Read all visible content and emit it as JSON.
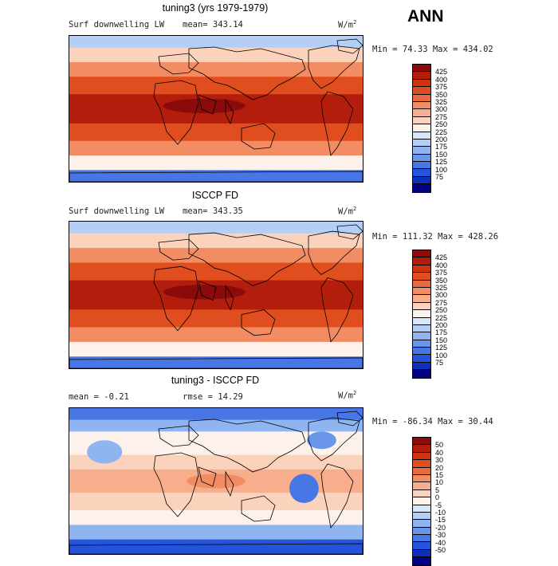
{
  "season": "ANN",
  "panels": [
    {
      "title": "tuning3 (yrs 1979-1979)",
      "variable": "Surf downwelling LW",
      "stat1": "mean= 343.14",
      "stat2": "",
      "units": "W/m",
      "units_exp": "2",
      "minmax": "Min =  74.33 Max = 434.02",
      "kind": "abs",
      "levels": [
        "425",
        "400",
        "375",
        "350",
        "325",
        "300",
        "275",
        "250",
        "225",
        "200",
        "175",
        "150",
        "125",
        "100",
        "75"
      ],
      "colors": [
        "#8b0a0a",
        "#b31e0c",
        "#cf340f",
        "#e04d1e",
        "#ea6a40",
        "#f28c63",
        "#f8ae8c",
        "#fbd3bd",
        "#fdf1ec",
        "#d8e6f9",
        "#b4cff5",
        "#8fb4f0",
        "#6a96ea",
        "#4876e4",
        "#2554dc",
        "#0d2fb9",
        "#000080"
      ]
    },
    {
      "title": "ISCCP FD",
      "variable": "Surf downwelling LW",
      "stat1": "mean= 343.35",
      "stat2": "",
      "units": "W/m",
      "units_exp": "2",
      "minmax": "Min = 111.32 Max = 428.26",
      "kind": "abs",
      "levels": [
        "425",
        "400",
        "375",
        "350",
        "325",
        "300",
        "275",
        "250",
        "225",
        "200",
        "175",
        "150",
        "125",
        "100",
        "75"
      ],
      "colors": [
        "#8b0a0a",
        "#b31e0c",
        "#cf340f",
        "#e04d1e",
        "#ea6a40",
        "#f28c63",
        "#f8ae8c",
        "#fbd3bd",
        "#fdf1ec",
        "#d8e6f9",
        "#b4cff5",
        "#8fb4f0",
        "#6a96ea",
        "#4876e4",
        "#2554dc",
        "#0d2fb9",
        "#000080"
      ]
    },
    {
      "title": "tuning3 - ISCCP FD",
      "variable": "",
      "stat1": "mean =  -0.21",
      "stat2": "rmse =  14.29",
      "units": "W/m",
      "units_exp": "2",
      "minmax": "Min = -86.34 Max =  30.44",
      "kind": "diff",
      "levels": [
        "50",
        "40",
        "30",
        "20",
        "15",
        "10",
        "5",
        "0",
        "-5",
        "-10",
        "-15",
        "-20",
        "-30",
        "-40",
        "-50"
      ],
      "colors": [
        "#8b0a0a",
        "#b31e0c",
        "#cf340f",
        "#e04d1e",
        "#ea6a40",
        "#f28c63",
        "#f8ae8c",
        "#fbd3bd",
        "#fdf1ec",
        "#d8e6f9",
        "#b4cff5",
        "#8fb4f0",
        "#6a96ea",
        "#4876e4",
        "#2554dc",
        "#0d2fb9",
        "#000080"
      ]
    }
  ]
}
